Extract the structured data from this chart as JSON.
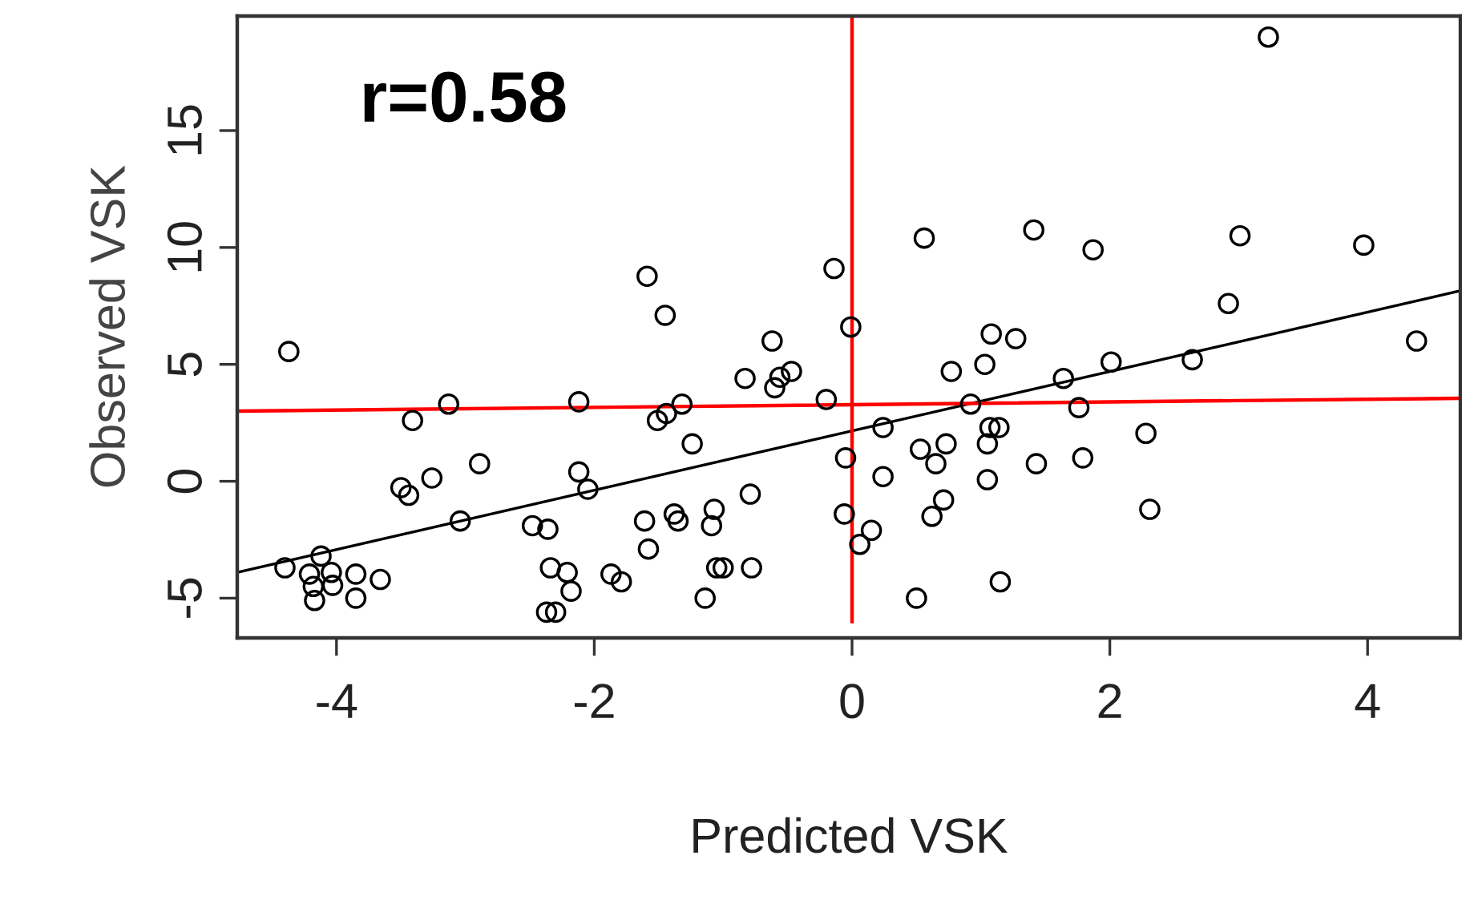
{
  "chart_data": {
    "type": "scatter",
    "xlabel": "Predicted VSK",
    "ylabel": "Observed VSK",
    "xlim": [
      -4.77,
      4.72
    ],
    "ylim": [
      -6.7,
      19.9
    ],
    "xticks": [
      -4,
      -2,
      0,
      2,
      4
    ],
    "yticks": [
      -5,
      0,
      5,
      10,
      15
    ],
    "grid": false,
    "legend": false,
    "annotations": [
      "r=0.58"
    ],
    "series": [
      {
        "marker": "circle",
        "color": "#000000",
        "x": [
          -4.37,
          -4.4,
          -4.21,
          -4.17,
          -4.12,
          -4.03,
          -4.18,
          -4.04,
          -3.85,
          -3.85,
          -3.66,
          -3.5,
          -3.44,
          -3.41,
          -3.26,
          -3.13,
          -3.04,
          -2.89,
          -2.48,
          -2.36,
          -2.34,
          -2.3,
          -2.37,
          -2.21,
          -2.18,
          -2.12,
          -2.12,
          -2.05,
          -1.87,
          -1.79,
          -1.59,
          -1.45,
          -1.61,
          -1.58,
          -1.51,
          -1.44,
          -1.35,
          -1.38,
          -1.32,
          -1.24,
          -1.14,
          -1.07,
          -1.09,
          -1.0,
          -1.05,
          -0.83,
          -0.79,
          -0.78,
          -0.62,
          -0.6,
          -0.56,
          -0.47,
          -0.2,
          -0.14,
          -0.06,
          -0.05,
          -0.01,
          0.06,
          0.15,
          0.24,
          0.24,
          0.5,
          0.53,
          0.65,
          0.62,
          0.71,
          0.73,
          0.77,
          0.56,
          0.92,
          1.03,
          1.08,
          1.07,
          1.14,
          1.05,
          1.05,
          1.15,
          1.27,
          1.41,
          1.43,
          1.64,
          1.76,
          1.79,
          1.87,
          2.01,
          2.28,
          2.31,
          2.64,
          2.92,
          3.23,
          3.01,
          3.97,
          4.38
        ],
        "values": [
          5.55,
          -3.7,
          -3.97,
          -5.1,
          -3.2,
          -4.45,
          -4.5,
          -3.9,
          -3.97,
          -5.0,
          -4.2,
          -0.27,
          -0.6,
          2.6,
          0.14,
          3.3,
          -1.7,
          0.75,
          -1.9,
          -2.05,
          -3.7,
          -5.6,
          -5.6,
          -3.9,
          -4.7,
          3.4,
          0.4,
          -0.34,
          -3.97,
          -4.3,
          8.77,
          7.1,
          -1.7,
          -2.9,
          2.6,
          2.9,
          -1.7,
          -1.4,
          3.3,
          1.6,
          -5.0,
          -1.2,
          -1.9,
          -3.7,
          -3.7,
          4.4,
          -0.55,
          -3.7,
          6.0,
          4.0,
          4.45,
          4.7,
          3.5,
          9.1,
          -1.4,
          1.0,
          6.6,
          -2.7,
          -2.1,
          2.3,
          0.2,
          -5.0,
          1.37,
          0.75,
          -1.5,
          -0.8,
          1.6,
          4.7,
          10.4,
          3.3,
          5.0,
          6.3,
          2.3,
          2.3,
          1.6,
          0.07,
          -4.3,
          6.1,
          10.75,
          0.75,
          4.4,
          3.15,
          1.0,
          9.9,
          5.1,
          2.05,
          -1.2,
          5.2,
          7.6,
          19.0,
          10.5,
          10.1,
          6.0
        ]
      },
      {
        "type": "line",
        "color": "#000000",
        "x": [
          -4.77,
          4.72
        ],
        "values": [
          -3.9,
          8.15
        ]
      },
      {
        "type": "line",
        "color": "#ff0000",
        "x": [
          -4.77,
          4.72
        ],
        "values": [
          3.0,
          3.55
        ]
      },
      {
        "type": "line",
        "color": "#ff0000",
        "x": [
          0,
          0
        ],
        "values": [
          19.9,
          -6.0
        ]
      }
    ]
  }
}
